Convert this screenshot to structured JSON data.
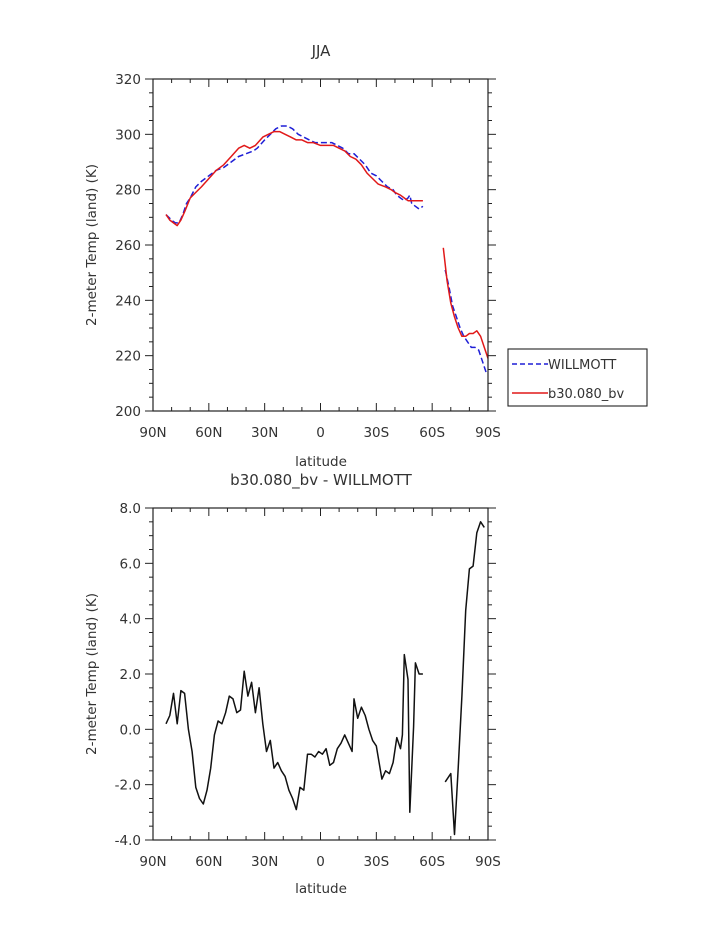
{
  "chart_data": [
    {
      "type": "line",
      "title": "JJA",
      "xlabel": "latitude",
      "ylabel": "2-meter Temp (land) (K)",
      "xlim": [
        90,
        -90
      ],
      "ylim": [
        200,
        320
      ],
      "x_ticks": [
        90,
        60,
        30,
        0,
        -30,
        -60,
        -90
      ],
      "x_tick_labels": [
        "90N",
        "60N",
        "30N",
        "0",
        "30S",
        "60S",
        "90S"
      ],
      "y_ticks": [
        200,
        220,
        240,
        260,
        280,
        300,
        320
      ],
      "y_tick_labels": [
        "200",
        "220",
        "240",
        "260",
        "280",
        "300",
        "320"
      ],
      "legend_position": "right",
      "series": [
        {
          "name": "WILLMOTT",
          "color": "#1f1fd6",
          "style": "dashed",
          "segments": [
            [
              [
                83,
                271
              ],
              [
                80,
                269
              ],
              [
                78,
                268
              ],
              [
                76,
                268
              ],
              [
                74,
                271
              ],
              [
                72,
                275
              ],
              [
                70,
                277
              ],
              [
                67,
                281
              ],
              [
                64,
                283
              ],
              [
                60,
                285
              ],
              [
                56,
                287
              ],
              [
                52,
                288
              ],
              [
                48,
                290
              ],
              [
                44,
                292
              ],
              [
                40,
                293
              ],
              [
                36,
                294
              ],
              [
                34,
                295
              ],
              [
                30,
                298
              ],
              [
                27,
                300
              ],
              [
                24,
                302
              ],
              [
                21,
                303
              ],
              [
                18,
                303
              ],
              [
                15,
                302
              ],
              [
                12,
                300
              ],
              [
                9,
                299
              ],
              [
                6,
                298
              ],
              [
                3,
                297
              ],
              [
                0,
                297
              ],
              [
                -3,
                297
              ],
              [
                -6,
                297
              ],
              [
                -9,
                296
              ],
              [
                -12,
                295
              ],
              [
                -15,
                293
              ],
              [
                -18,
                293
              ],
              [
                -21,
                291
              ],
              [
                -24,
                289
              ],
              [
                -27,
                286
              ],
              [
                -30,
                285
              ],
              [
                -33,
                283
              ],
              [
                -36,
                281
              ],
              [
                -39,
                280
              ],
              [
                -41,
                278
              ],
              [
                -43,
                277
              ],
              [
                -45,
                276
              ],
              [
                -47,
                277
              ],
              [
                -48,
                278
              ],
              [
                -49,
                275
              ],
              [
                -51,
                274
              ],
              [
                -53,
                273
              ],
              [
                -55,
                274
              ]
            ],
            [
              [
                -67,
                251
              ],
              [
                -69,
                245
              ],
              [
                -71,
                238
              ],
              [
                -73,
                234
              ],
              [
                -75,
                230
              ],
              [
                -77,
                227
              ],
              [
                -79,
                225
              ],
              [
                -81,
                223
              ],
              [
                -83,
                223
              ],
              [
                -85,
                222
              ],
              [
                -87,
                218
              ],
              [
                -89,
                214
              ]
            ]
          ]
        },
        {
          "name": "b30.080_bv",
          "color": "#e11919",
          "style": "solid",
          "segments": [
            [
              [
                83,
                271
              ],
              [
                81,
                269
              ],
              [
                79,
                268
              ],
              [
                77,
                267
              ],
              [
                75,
                269
              ],
              [
                73,
                272
              ],
              [
                70,
                277
              ],
              [
                67,
                279
              ],
              [
                64,
                281
              ],
              [
                60,
                284
              ],
              [
                56,
                287
              ],
              [
                52,
                289
              ],
              [
                48,
                292
              ],
              [
                44,
                295
              ],
              [
                41,
                296
              ],
              [
                38,
                295
              ],
              [
                35,
                296
              ],
              [
                31,
                299
              ],
              [
                28,
                300
              ],
              [
                25,
                301
              ],
              [
                22,
                301
              ],
              [
                19,
                300
              ],
              [
                16,
                299
              ],
              [
                13,
                298
              ],
              [
                10,
                298
              ],
              [
                7,
                297
              ],
              [
                4,
                297
              ],
              [
                0,
                296
              ],
              [
                -4,
                296
              ],
              [
                -7,
                296
              ],
              [
                -10,
                295
              ],
              [
                -13,
                294
              ],
              [
                -16,
                292
              ],
              [
                -19,
                291
              ],
              [
                -22,
                289
              ],
              [
                -25,
                286
              ],
              [
                -28,
                284
              ],
              [
                -31,
                282
              ],
              [
                -35,
                281
              ],
              [
                -38,
                280
              ],
              [
                -40,
                279
              ],
              [
                -43,
                278
              ],
              [
                -45,
                277
              ],
              [
                -47,
                276
              ],
              [
                -49,
                276
              ],
              [
                -52,
                276
              ],
              [
                -55,
                276
              ]
            ],
            [
              [
                -66,
                259
              ],
              [
                -68,
                247
              ],
              [
                -70,
                239
              ],
              [
                -72,
                234
              ],
              [
                -74,
                230
              ],
              [
                -76,
                227
              ],
              [
                -78,
                227
              ],
              [
                -80,
                228
              ],
              [
                -82,
                228
              ],
              [
                -84,
                229
              ],
              [
                -86,
                227
              ],
              [
                -88,
                223
              ],
              [
                -90,
                219
              ]
            ]
          ]
        }
      ]
    },
    {
      "type": "line",
      "title": "b30.080_bv - WILLMOTT",
      "xlabel": "latitude",
      "ylabel": "2-meter Temp (land) (K)",
      "xlim": [
        90,
        -90
      ],
      "ylim": [
        -4.0,
        8.0
      ],
      "x_ticks": [
        90,
        60,
        30,
        0,
        -30,
        -60,
        -90
      ],
      "x_tick_labels": [
        "90N",
        "60N",
        "30N",
        "0",
        "30S",
        "60S",
        "90S"
      ],
      "y_ticks": [
        -4,
        -2,
        0,
        2,
        4,
        6,
        8
      ],
      "y_tick_labels": [
        "-4.0",
        "-2.0",
        "0.0",
        "2.0",
        "4.0",
        "6.0",
        "8.0"
      ],
      "series": [
        {
          "color": "#111111",
          "style": "solid",
          "segments": [
            [
              [
                83,
                0.2
              ],
              [
                81,
                0.5
              ],
              [
                79,
                1.3
              ],
              [
                77,
                0.2
              ],
              [
                75,
                1.4
              ],
              [
                73,
                1.3
              ],
              [
                71,
                0.0
              ],
              [
                69,
                -0.8
              ],
              [
                67,
                -2.1
              ],
              [
                65,
                -2.5
              ],
              [
                63,
                -2.7
              ],
              [
                61,
                -2.2
              ],
              [
                59,
                -1.4
              ],
              [
                57,
                -0.2
              ],
              [
                55,
                0.3
              ],
              [
                53,
                0.2
              ],
              [
                51,
                0.6
              ],
              [
                49,
                1.2
              ],
              [
                47,
                1.1
              ],
              [
                45,
                0.6
              ],
              [
                43,
                0.7
              ],
              [
                41,
                2.1
              ],
              [
                39,
                1.2
              ],
              [
                37,
                1.7
              ],
              [
                35,
                0.6
              ],
              [
                33,
                1.5
              ],
              [
                31,
                0.2
              ],
              [
                29,
                -0.8
              ],
              [
                27,
                -0.4
              ],
              [
                25,
                -1.4
              ],
              [
                23,
                -1.2
              ],
              [
                21,
                -1.5
              ],
              [
                19,
                -1.7
              ],
              [
                17,
                -2.2
              ],
              [
                15,
                -2.5
              ],
              [
                13,
                -2.9
              ],
              [
                11,
                -2.1
              ],
              [
                9,
                -2.2
              ],
              [
                7,
                -0.9
              ],
              [
                5,
                -0.9
              ],
              [
                3,
                -1.0
              ],
              [
                1,
                -0.8
              ],
              [
                -1,
                -0.9
              ],
              [
                -3,
                -0.7
              ],
              [
                -5,
                -1.3
              ],
              [
                -7,
                -1.2
              ],
              [
                -9,
                -0.7
              ],
              [
                -11,
                -0.5
              ],
              [
                -13,
                -0.2
              ],
              [
                -15,
                -0.5
              ],
              [
                -17,
                -0.8
              ],
              [
                -18,
                1.1
              ],
              [
                -20,
                0.4
              ],
              [
                -22,
                0.8
              ],
              [
                -24,
                0.5
              ],
              [
                -26,
                0.0
              ],
              [
                -28,
                -0.4
              ],
              [
                -30,
                -0.6
              ],
              [
                -33,
                -1.8
              ],
              [
                -35,
                -1.5
              ],
              [
                -37,
                -1.6
              ],
              [
                -39,
                -1.2
              ],
              [
                -41,
                -0.3
              ],
              [
                -43,
                -0.7
              ],
              [
                -44,
                -0.2
              ],
              [
                -45,
                2.7
              ],
              [
                -47,
                1.8
              ],
              [
                -48,
                -3.0
              ],
              [
                -50,
                0.1
              ],
              [
                -51,
                2.4
              ],
              [
                -53,
                2.0
              ],
              [
                -55,
                2.0
              ]
            ],
            [
              [
                -67,
                -1.9
              ],
              [
                -70,
                -1.6
              ],
              [
                -72,
                -3.8
              ],
              [
                -74,
                -1.4
              ],
              [
                -76,
                1.2
              ],
              [
                -78,
                4.3
              ],
              [
                -80,
                5.8
              ],
              [
                -82,
                5.9
              ],
              [
                -84,
                7.1
              ],
              [
                -86,
                7.5
              ],
              [
                -88,
                7.3
              ]
            ]
          ]
        }
      ]
    }
  ]
}
